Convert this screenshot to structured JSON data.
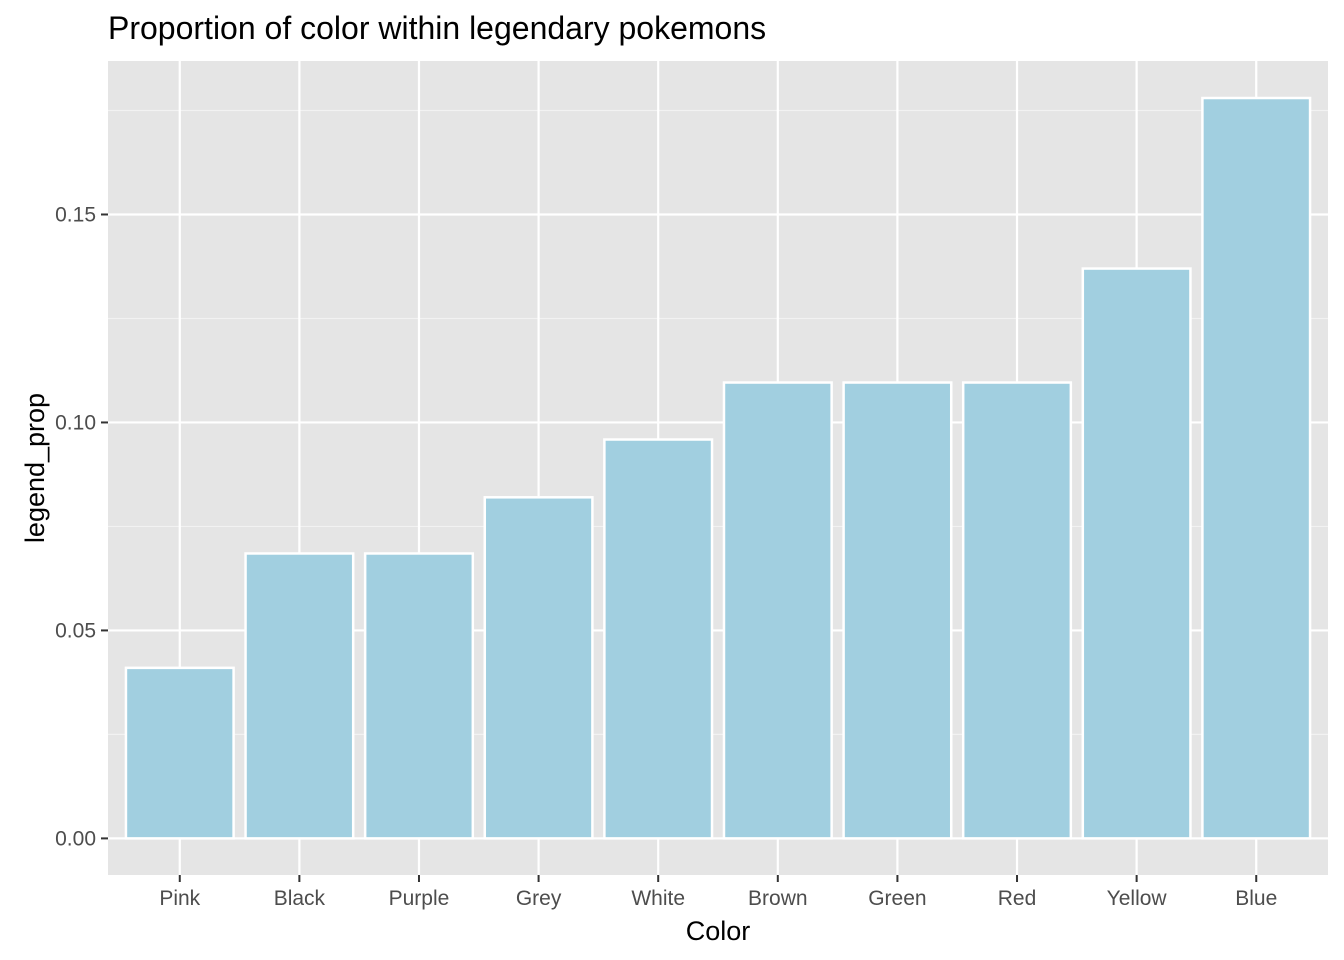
{
  "chart_data": {
    "type": "bar",
    "title": "Proportion of color within legendary pokemons",
    "xlabel": "Color",
    "ylabel": "legend_prop",
    "categories": [
      "Pink",
      "Black",
      "Purple",
      "Grey",
      "White",
      "Brown",
      "Green",
      "Red",
      "Yellow",
      "Blue"
    ],
    "values": [
      0.041,
      0.0685,
      0.0685,
      0.082,
      0.0959,
      0.1096,
      0.1096,
      0.1096,
      0.137,
      0.178
    ],
    "ylim": [
      -0.0088,
      0.1869
    ],
    "yticks": [
      0.0,
      0.05,
      0.1,
      0.15
    ],
    "ytick_labels": [
      "0.00",
      "0.05",
      "0.10",
      "0.15"
    ],
    "grid": true,
    "legend": "none",
    "colors": {
      "bar_fill": "#a1cfe0",
      "bar_stroke": "#ffffff",
      "panel_background": "#e5e5e5",
      "grid_major": "#ffffff",
      "grid_minor": "#f2f2f2",
      "tick_text": "#4d4d4d",
      "title_text": "#000000"
    }
  }
}
